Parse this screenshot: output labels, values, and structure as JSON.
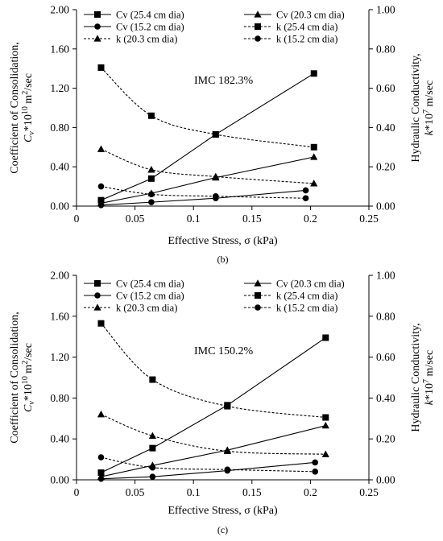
{
  "chart_data": [
    {
      "type": "line",
      "caption": "(b)",
      "annotation": "IMC 182.3%",
      "xlabel": "Effective Stress, σ (kPa)",
      "ylabel_left": [
        "Coefficient of Consolidation,",
        "C",
        "v",
        "*10",
        "10",
        " m",
        "2",
        "/sec"
      ],
      "ylabel_right": [
        "Hydraulic Conductivity,",
        "k",
        "*10",
        "7",
        " m/sec"
      ],
      "xlim": [
        0,
        0.25
      ],
      "xticks": [
        0,
        0.05,
        0.1,
        0.15,
        0.2,
        0.25
      ],
      "xtick_labels": [
        "0",
        "0.05",
        "0.1",
        "0.15",
        "0.2",
        "0.25"
      ],
      "ylim_left": [
        0,
        2.0
      ],
      "yticks_left": [
        "0.00",
        "0.40",
        "0.80",
        "1.20",
        "1.60",
        "2.00"
      ],
      "ylim_right": [
        0,
        1.0
      ],
      "yticks_right": [
        "0.00",
        "0.20",
        "0.40",
        "0.60",
        "0.80",
        "1.00"
      ],
      "series": [
        {
          "name": "Cv (25.4 cm dia)",
          "axis": "left",
          "marker": "square",
          "dash": "solid",
          "curve": "straight",
          "x": [
            0.021,
            0.064,
            0.119,
            0.203
          ],
          "y": [
            0.06,
            0.28,
            0.73,
            1.35
          ]
        },
        {
          "name": "Cv (20.3 cm dia)",
          "axis": "left",
          "marker": "triangle",
          "dash": "solid",
          "curve": "straight",
          "x": [
            0.021,
            0.064,
            0.119,
            0.203
          ],
          "y": [
            0.03,
            0.13,
            0.29,
            0.5
          ]
        },
        {
          "name": "Cv (15.2 cm dia)",
          "axis": "left",
          "marker": "circle",
          "dash": "solid",
          "curve": "straight",
          "x": [
            0.021,
            0.064,
            0.119,
            0.196
          ],
          "y": [
            0.01,
            0.04,
            0.08,
            0.16
          ]
        },
        {
          "name": "k (25.4 cm dia)",
          "axis": "right",
          "marker": "square",
          "dash": "dashed",
          "curve": "smooth",
          "x": [
            0.021,
            0.064,
            0.119,
            0.203
          ],
          "y": [
            0.705,
            0.46,
            0.365,
            0.3
          ]
        },
        {
          "name": "k (20.3 cm dia)",
          "axis": "right",
          "marker": "triangle",
          "dash": "dashed",
          "curve": "smooth",
          "x": [
            0.021,
            0.064,
            0.119,
            0.203
          ],
          "y": [
            0.29,
            0.185,
            0.15,
            0.115
          ]
        },
        {
          "name": "k (15.2 cm dia)",
          "axis": "right",
          "marker": "circle",
          "dash": "dashed",
          "curve": "smooth",
          "x": [
            0.021,
            0.064,
            0.119,
            0.196
          ],
          "y": [
            0.1,
            0.06,
            0.05,
            0.04
          ]
        }
      ]
    },
    {
      "type": "line",
      "caption": "(c)",
      "annotation": "IMC 150.2%",
      "xlabel": "Effective Stress, σ (kPa)",
      "ylabel_left": [
        "Coefficient of Consolidation,",
        "C",
        "v",
        "*10",
        "10",
        " m",
        "2",
        "/sec"
      ],
      "ylabel_right": [
        "Hydraulic Conductivity,",
        "k",
        "*10",
        "7",
        " m/sec"
      ],
      "xlim": [
        0,
        0.25
      ],
      "xticks": [
        0,
        0.05,
        0.1,
        0.15,
        0.2,
        0.25
      ],
      "xtick_labels": [
        "0",
        "0.05",
        "0.1",
        "0.15",
        "0.2",
        "0.25"
      ],
      "ylim_left": [
        0,
        2.0
      ],
      "yticks_left": [
        "0.00",
        "0.40",
        "0.80",
        "1.20",
        "1.60",
        "2.00"
      ],
      "ylim_right": [
        0,
        1.0
      ],
      "yticks_right": [
        "0.00",
        "0.20",
        "0.40",
        "0.60",
        "0.80",
        "1.00"
      ],
      "series": [
        {
          "name": "Cv (25.4 cm dia)",
          "axis": "left",
          "marker": "square",
          "dash": "solid",
          "curve": "straight",
          "x": [
            0.021,
            0.065,
            0.129,
            0.213
          ],
          "y": [
            0.07,
            0.31,
            0.73,
            1.39
          ]
        },
        {
          "name": "Cv (20.3 cm dia)",
          "axis": "left",
          "marker": "triangle",
          "dash": "solid",
          "curve": "straight",
          "x": [
            0.021,
            0.065,
            0.129,
            0.213
          ],
          "y": [
            0.03,
            0.14,
            0.29,
            0.53
          ]
        },
        {
          "name": "Cv (15.2 cm dia)",
          "axis": "left",
          "marker": "circle",
          "dash": "solid",
          "curve": "straight",
          "x": [
            0.021,
            0.065,
            0.129,
            0.204
          ],
          "y": [
            0.01,
            0.03,
            0.09,
            0.17
          ]
        },
        {
          "name": "k (25.4 cm dia)",
          "axis": "right",
          "marker": "square",
          "dash": "dashed",
          "curve": "smooth",
          "x": [
            0.021,
            0.065,
            0.129,
            0.213
          ],
          "y": [
            0.765,
            0.49,
            0.36,
            0.305
          ]
        },
        {
          "name": "k (20.3 cm dia)",
          "axis": "right",
          "marker": "triangle",
          "dash": "dashed",
          "curve": "smooth",
          "x": [
            0.021,
            0.065,
            0.129,
            0.213
          ],
          "y": [
            0.32,
            0.215,
            0.14,
            0.125
          ]
        },
        {
          "name": "k (15.2 cm dia)",
          "axis": "right",
          "marker": "circle",
          "dash": "dashed",
          "curve": "smooth",
          "x": [
            0.021,
            0.065,
            0.129,
            0.204
          ],
          "y": [
            0.11,
            0.06,
            0.05,
            0.04
          ]
        }
      ]
    }
  ]
}
